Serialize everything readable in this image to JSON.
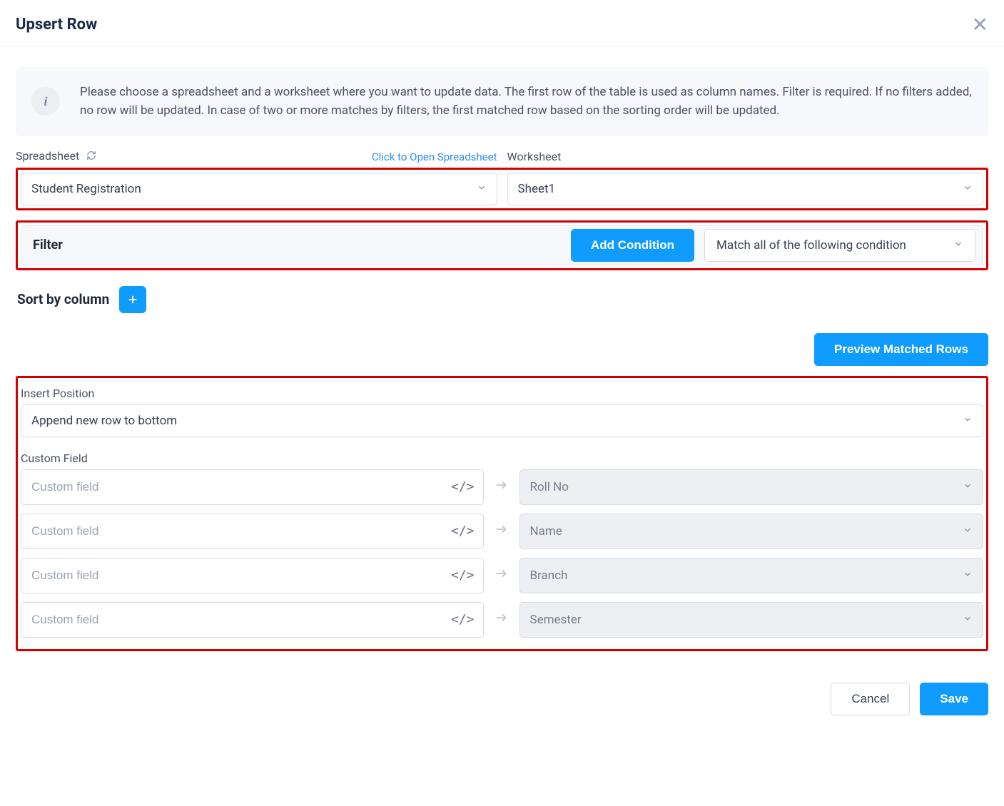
{
  "header": {
    "title": "Upsert Row"
  },
  "info": {
    "text": "Please choose a spreadsheet and a worksheet where you want to update data. The first row of the table is used as column names. Filter is required. If no filters added, no row will be updated. In case of two or more matches by filters, the first matched row based on the sorting order will be updated."
  },
  "spreadsheet": {
    "label": "Spreadsheet",
    "open_link": "Click to Open Spreadsheet",
    "value": "Student Registration"
  },
  "worksheet": {
    "label": "Worksheet",
    "value": "Sheet1"
  },
  "filter": {
    "label": "Filter",
    "add_button": "Add Condition",
    "match_value": "Match all of the following condition"
  },
  "sort": {
    "label": "Sort by column"
  },
  "preview": {
    "button": "Preview Matched Rows"
  },
  "insert": {
    "label": "Insert Position",
    "value": "Append new row to bottom"
  },
  "custom": {
    "label": "Custom Field",
    "placeholder": "Custom field",
    "rows": [
      {
        "target": "Roll No"
      },
      {
        "target": "Name"
      },
      {
        "target": "Branch"
      },
      {
        "target": "Semester"
      }
    ]
  },
  "footer": {
    "cancel": "Cancel",
    "save": "Save"
  },
  "colors": {
    "primary": "#109bff",
    "highlight": "#d40000",
    "text": "#1f2937",
    "muted": "#4a5263",
    "border": "#d7dbe3",
    "panel_bg": "#f6f8fb"
  }
}
